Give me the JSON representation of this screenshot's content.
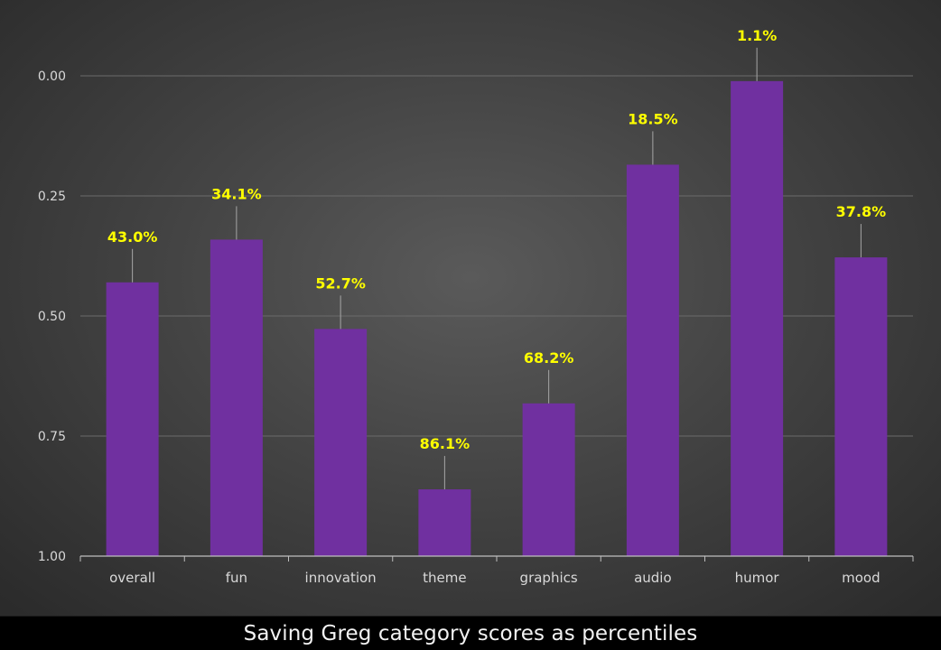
{
  "chart_data": {
    "type": "bar",
    "title": "Saving Greg category scores as percentiles",
    "xlabel": "",
    "ylabel": "",
    "y_inverted": true,
    "ylim": [
      0,
      1
    ],
    "yticks": [
      "0.00",
      "0.25",
      "0.50",
      "0.75",
      "1.00"
    ],
    "ytick_values": [
      0,
      0.25,
      0.5,
      0.75,
      1.0
    ],
    "grid": true,
    "categories": [
      "overall",
      "fun",
      "innovation",
      "theme",
      "graphics",
      "audio",
      "humor",
      "mood"
    ],
    "values": [
      0.43,
      0.341,
      0.527,
      0.861,
      0.682,
      0.185,
      0.011,
      0.378
    ],
    "data_labels": [
      "43.0%",
      "34.1%",
      "52.7%",
      "86.1%",
      "68.2%",
      "18.5%",
      "1.1%",
      "37.8%"
    ],
    "colors": {
      "bar": "#7030a0",
      "data_label": "#ffff00",
      "leader_line": "#a6a6a6",
      "gridline": "#6b6b6b",
      "axis_text": "#d9d9d9"
    }
  }
}
